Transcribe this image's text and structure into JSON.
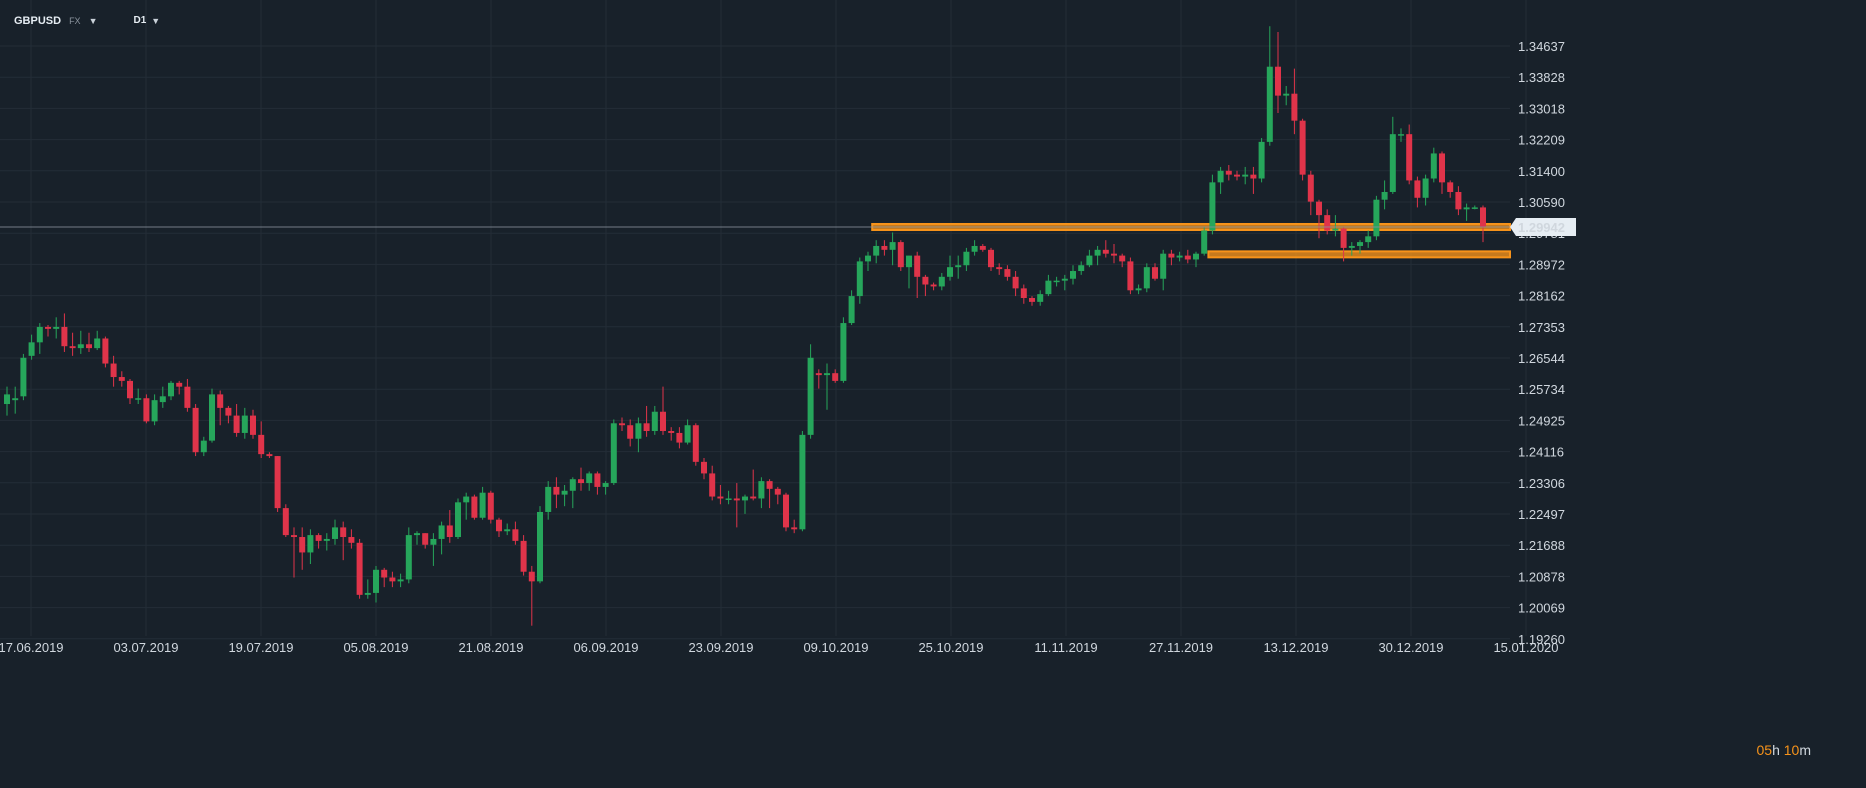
{
  "header": {
    "symbol": "GBPUSD",
    "market": "FX",
    "timeframe": "D1"
  },
  "colors": {
    "background": "#18212a",
    "grid": "#232d37",
    "up": "#26a65b",
    "down": "#e0344a",
    "zone": "#f7931a",
    "price_line": "#8b949e"
  },
  "timer": {
    "hours": "05",
    "h": "h",
    "minutes": "10",
    "m": "m"
  },
  "current_price": "1.29942",
  "chart_data": {
    "type": "candlestick",
    "title": "",
    "xlabel": "",
    "ylabel": "",
    "ylim": [
      1.1926,
      1.35446
    ],
    "y_ticks": [
      "1.34637",
      "1.33828",
      "1.33018",
      "1.32209",
      "1.31400",
      "1.30590",
      "1.29781",
      "1.28972",
      "1.28162",
      "1.27353",
      "1.26544",
      "1.25734",
      "1.24925",
      "1.24116",
      "1.23306",
      "1.22497",
      "1.21688",
      "1.20878",
      "1.20069",
      "1.19260"
    ],
    "x_ticks": [
      "17.06.2019",
      "03.07.2019",
      "19.07.2019",
      "05.08.2019",
      "21.08.2019",
      "06.09.2019",
      "23.09.2019",
      "09.10.2019",
      "25.10.2019",
      "11.11.2019",
      "27.11.2019",
      "13.12.2019",
      "30.12.2019",
      "15.01.2020"
    ],
    "grid": true,
    "candles_start_date": "17.06.2019",
    "candles": [
      {
        "o": 1.2535,
        "h": 1.258,
        "l": 1.2505,
        "c": 1.256
      },
      {
        "o": 1.2545,
        "h": 1.258,
        "l": 1.251,
        "c": 1.255
      },
      {
        "o": 1.2555,
        "h": 1.2665,
        "l": 1.2545,
        "c": 1.2655
      },
      {
        "o": 1.266,
        "h": 1.2715,
        "l": 1.265,
        "c": 1.2695
      },
      {
        "o": 1.2695,
        "h": 1.2745,
        "l": 1.2665,
        "c": 1.2735
      },
      {
        "o": 1.2735,
        "h": 1.274,
        "l": 1.271,
        "c": 1.273
      },
      {
        "o": 1.273,
        "h": 1.276,
        "l": 1.2705,
        "c": 1.2735
      },
      {
        "o": 1.2735,
        "h": 1.277,
        "l": 1.267,
        "c": 1.2685
      },
      {
        "o": 1.2685,
        "h": 1.272,
        "l": 1.266,
        "c": 1.268
      },
      {
        "o": 1.268,
        "h": 1.2725,
        "l": 1.2665,
        "c": 1.269
      },
      {
        "o": 1.269,
        "h": 1.272,
        "l": 1.267,
        "c": 1.268
      },
      {
        "o": 1.268,
        "h": 1.2725,
        "l": 1.2675,
        "c": 1.2705
      },
      {
        "o": 1.2705,
        "h": 1.271,
        "l": 1.263,
        "c": 1.264
      },
      {
        "o": 1.264,
        "h": 1.266,
        "l": 1.258,
        "c": 1.2605
      },
      {
        "o": 1.2605,
        "h": 1.262,
        "l": 1.258,
        "c": 1.2595
      },
      {
        "o": 1.2595,
        "h": 1.26,
        "l": 1.2535,
        "c": 1.255
      },
      {
        "o": 1.255,
        "h": 1.2575,
        "l": 1.2535,
        "c": 1.255
      },
      {
        "o": 1.255,
        "h": 1.256,
        "l": 1.2485,
        "c": 1.249
      },
      {
        "o": 1.249,
        "h": 1.256,
        "l": 1.248,
        "c": 1.2545
      },
      {
        "o": 1.254,
        "h": 1.258,
        "l": 1.2525,
        "c": 1.2555
      },
      {
        "o": 1.2555,
        "h": 1.2595,
        "l": 1.2545,
        "c": 1.259
      },
      {
        "o": 1.259,
        "h": 1.2595,
        "l": 1.256,
        "c": 1.258
      },
      {
        "o": 1.258,
        "h": 1.26,
        "l": 1.2515,
        "c": 1.2525
      },
      {
        "o": 1.2525,
        "h": 1.2535,
        "l": 1.24,
        "c": 1.241
      },
      {
        "o": 1.241,
        "h": 1.245,
        "l": 1.24,
        "c": 1.244
      },
      {
        "o": 1.244,
        "h": 1.2575,
        "l": 1.2435,
        "c": 1.256
      },
      {
        "o": 1.256,
        "h": 1.257,
        "l": 1.248,
        "c": 1.2525
      },
      {
        "o": 1.2525,
        "h": 1.253,
        "l": 1.2485,
        "c": 1.2505
      },
      {
        "o": 1.2505,
        "h": 1.2535,
        "l": 1.245,
        "c": 1.246
      },
      {
        "o": 1.246,
        "h": 1.2525,
        "l": 1.2445,
        "c": 1.2505
      },
      {
        "o": 1.2505,
        "h": 1.252,
        "l": 1.2445,
        "c": 1.2455
      },
      {
        "o": 1.2455,
        "h": 1.249,
        "l": 1.2395,
        "c": 1.2405
      },
      {
        "o": 1.2405,
        "h": 1.241,
        "l": 1.2395,
        "c": 1.24
      },
      {
        "o": 1.24,
        "h": 1.24,
        "l": 1.2255,
        "c": 1.2265
      },
      {
        "o": 1.2265,
        "h": 1.2275,
        "l": 1.219,
        "c": 1.2195
      },
      {
        "o": 1.2195,
        "h": 1.2215,
        "l": 1.2085,
        "c": 1.219
      },
      {
        "o": 1.219,
        "h": 1.2215,
        "l": 1.2105,
        "c": 1.215
      },
      {
        "o": 1.215,
        "h": 1.221,
        "l": 1.212,
        "c": 1.2195
      },
      {
        "o": 1.2195,
        "h": 1.22,
        "l": 1.216,
        "c": 1.218
      },
      {
        "o": 1.218,
        "h": 1.22,
        "l": 1.2155,
        "c": 1.2185
      },
      {
        "o": 1.2185,
        "h": 1.2235,
        "l": 1.217,
        "c": 1.2215
      },
      {
        "o": 1.2215,
        "h": 1.223,
        "l": 1.213,
        "c": 1.219
      },
      {
        "o": 1.219,
        "h": 1.221,
        "l": 1.216,
        "c": 1.2175
      },
      {
        "o": 1.2175,
        "h": 1.2185,
        "l": 1.203,
        "c": 1.204
      },
      {
        "o": 1.204,
        "h": 1.208,
        "l": 1.203,
        "c": 1.2045
      },
      {
        "o": 1.2045,
        "h": 1.2115,
        "l": 1.202,
        "c": 1.2105
      },
      {
        "o": 1.2105,
        "h": 1.211,
        "l": 1.206,
        "c": 1.2085
      },
      {
        "o": 1.2085,
        "h": 1.21,
        "l": 1.206,
        "c": 1.2075
      },
      {
        "o": 1.2075,
        "h": 1.2095,
        "l": 1.206,
        "c": 1.208
      },
      {
        "o": 1.208,
        "h": 1.2215,
        "l": 1.207,
        "c": 1.2195
      },
      {
        "o": 1.2195,
        "h": 1.2205,
        "l": 1.217,
        "c": 1.22
      },
      {
        "o": 1.22,
        "h": 1.22,
        "l": 1.216,
        "c": 1.217
      },
      {
        "o": 1.217,
        "h": 1.22,
        "l": 1.2115,
        "c": 1.2185
      },
      {
        "o": 1.2185,
        "h": 1.223,
        "l": 1.2145,
        "c": 1.222
      },
      {
        "o": 1.222,
        "h": 1.226,
        "l": 1.2175,
        "c": 1.219
      },
      {
        "o": 1.219,
        "h": 1.229,
        "l": 1.2185,
        "c": 1.228
      },
      {
        "o": 1.228,
        "h": 1.2305,
        "l": 1.2235,
        "c": 1.2295
      },
      {
        "o": 1.2295,
        "h": 1.23,
        "l": 1.2235,
        "c": 1.224
      },
      {
        "o": 1.224,
        "h": 1.232,
        "l": 1.2235,
        "c": 1.2305
      },
      {
        "o": 1.2305,
        "h": 1.231,
        "l": 1.2225,
        "c": 1.2235
      },
      {
        "o": 1.2235,
        "h": 1.224,
        "l": 1.219,
        "c": 1.2205
      },
      {
        "o": 1.2205,
        "h": 1.2225,
        "l": 1.2195,
        "c": 1.221
      },
      {
        "o": 1.221,
        "h": 1.223,
        "l": 1.217,
        "c": 1.218
      },
      {
        "o": 1.218,
        "h": 1.2195,
        "l": 1.209,
        "c": 1.21
      },
      {
        "o": 1.21,
        "h": 1.2115,
        "l": 1.196,
        "c": 1.2075
      },
      {
        "o": 1.2075,
        "h": 1.227,
        "l": 1.207,
        "c": 1.2255
      },
      {
        "o": 1.2255,
        "h": 1.2335,
        "l": 1.2235,
        "c": 1.232
      },
      {
        "o": 1.232,
        "h": 1.2345,
        "l": 1.2265,
        "c": 1.23
      },
      {
        "o": 1.23,
        "h": 1.2325,
        "l": 1.227,
        "c": 1.231
      },
      {
        "o": 1.231,
        "h": 1.2345,
        "l": 1.2265,
        "c": 1.234
      },
      {
        "o": 1.234,
        "h": 1.237,
        "l": 1.231,
        "c": 1.233
      },
      {
        "o": 1.233,
        "h": 1.236,
        "l": 1.231,
        "c": 1.2355
      },
      {
        "o": 1.2355,
        "h": 1.236,
        "l": 1.23,
        "c": 1.232
      },
      {
        "o": 1.232,
        "h": 1.2335,
        "l": 1.23,
        "c": 1.233
      },
      {
        "o": 1.233,
        "h": 1.2495,
        "l": 1.2325,
        "c": 1.2485
      },
      {
        "o": 1.2485,
        "h": 1.25,
        "l": 1.2465,
        "c": 1.248
      },
      {
        "o": 1.248,
        "h": 1.2495,
        "l": 1.2425,
        "c": 1.2445
      },
      {
        "o": 1.2445,
        "h": 1.25,
        "l": 1.241,
        "c": 1.2485
      },
      {
        "o": 1.2485,
        "h": 1.253,
        "l": 1.245,
        "c": 1.2465
      },
      {
        "o": 1.2465,
        "h": 1.253,
        "l": 1.2455,
        "c": 1.2515
      },
      {
        "o": 1.2515,
        "h": 1.258,
        "l": 1.2455,
        "c": 1.2465
      },
      {
        "o": 1.2465,
        "h": 1.2475,
        "l": 1.244,
        "c": 1.246
      },
      {
        "o": 1.246,
        "h": 1.2475,
        "l": 1.242,
        "c": 1.2435
      },
      {
        "o": 1.2435,
        "h": 1.2495,
        "l": 1.243,
        "c": 1.248
      },
      {
        "o": 1.248,
        "h": 1.2485,
        "l": 1.2375,
        "c": 1.2385
      },
      {
        "o": 1.2385,
        "h": 1.2395,
        "l": 1.234,
        "c": 1.2355
      },
      {
        "o": 1.2355,
        "h": 1.2375,
        "l": 1.2285,
        "c": 1.2295
      },
      {
        "o": 1.2295,
        "h": 1.2325,
        "l": 1.2275,
        "c": 1.229
      },
      {
        "o": 1.229,
        "h": 1.231,
        "l": 1.2275,
        "c": 1.229
      },
      {
        "o": 1.229,
        "h": 1.233,
        "l": 1.2215,
        "c": 1.2285
      },
      {
        "o": 1.2285,
        "h": 1.23,
        "l": 1.225,
        "c": 1.2295
      },
      {
        "o": 1.2295,
        "h": 1.2365,
        "l": 1.2285,
        "c": 1.229
      },
      {
        "o": 1.229,
        "h": 1.2345,
        "l": 1.2265,
        "c": 1.2335
      },
      {
        "o": 1.2335,
        "h": 1.234,
        "l": 1.2265,
        "c": 1.2315
      },
      {
        "o": 1.2315,
        "h": 1.232,
        "l": 1.2275,
        "c": 1.23
      },
      {
        "o": 1.23,
        "h": 1.2305,
        "l": 1.2205,
        "c": 1.2215
      },
      {
        "o": 1.2215,
        "h": 1.2235,
        "l": 1.22,
        "c": 1.221
      },
      {
        "o": 1.221,
        "h": 1.2465,
        "l": 1.2205,
        "c": 1.2455
      },
      {
        "o": 1.2455,
        "h": 1.269,
        "l": 1.2445,
        "c": 1.2655
      },
      {
        "o": 1.2615,
        "h": 1.2625,
        "l": 1.2575,
        "c": 1.261
      },
      {
        "o": 1.261,
        "h": 1.264,
        "l": 1.252,
        "c": 1.2615
      },
      {
        "o": 1.2615,
        "h": 1.2625,
        "l": 1.259,
        "c": 1.2595
      },
      {
        "o": 1.2595,
        "h": 1.276,
        "l": 1.259,
        "c": 1.2745
      },
      {
        "o": 1.2745,
        "h": 1.283,
        "l": 1.274,
        "c": 1.2815
      },
      {
        "o": 1.2815,
        "h": 1.2915,
        "l": 1.2795,
        "c": 1.2905
      },
      {
        "o": 1.2905,
        "h": 1.293,
        "l": 1.288,
        "c": 1.292
      },
      {
        "o": 1.292,
        "h": 1.296,
        "l": 1.29,
        "c": 1.2945
      },
      {
        "o": 1.2945,
        "h": 1.296,
        "l": 1.292,
        "c": 1.2935
      },
      {
        "o": 1.2935,
        "h": 1.298,
        "l": 1.2895,
        "c": 1.2955
      },
      {
        "o": 1.2955,
        "h": 1.296,
        "l": 1.288,
        "c": 1.289
      },
      {
        "o": 1.289,
        "h": 1.292,
        "l": 1.2835,
        "c": 1.292
      },
      {
        "o": 1.292,
        "h": 1.293,
        "l": 1.281,
        "c": 1.2865
      },
      {
        "o": 1.2865,
        "h": 1.287,
        "l": 1.2815,
        "c": 1.2845
      },
      {
        "o": 1.2845,
        "h": 1.285,
        "l": 1.283,
        "c": 1.284
      },
      {
        "o": 1.284,
        "h": 1.2875,
        "l": 1.283,
        "c": 1.2865
      },
      {
        "o": 1.2865,
        "h": 1.292,
        "l": 1.2855,
        "c": 1.289
      },
      {
        "o": 1.289,
        "h": 1.292,
        "l": 1.286,
        "c": 1.2895
      },
      {
        "o": 1.2895,
        "h": 1.294,
        "l": 1.288,
        "c": 1.293
      },
      {
        "o": 1.293,
        "h": 1.296,
        "l": 1.292,
        "c": 1.2945
      },
      {
        "o": 1.2945,
        "h": 1.295,
        "l": 1.293,
        "c": 1.2935
      },
      {
        "o": 1.2935,
        "h": 1.294,
        "l": 1.288,
        "c": 1.289
      },
      {
        "o": 1.289,
        "h": 1.29,
        "l": 1.287,
        "c": 1.2885
      },
      {
        "o": 1.2885,
        "h": 1.2895,
        "l": 1.2855,
        "c": 1.2865
      },
      {
        "o": 1.2865,
        "h": 1.288,
        "l": 1.2815,
        "c": 1.2835
      },
      {
        "o": 1.2835,
        "h": 1.2845,
        "l": 1.2795,
        "c": 1.281
      },
      {
        "o": 1.281,
        "h": 1.2815,
        "l": 1.279,
        "c": 1.28
      },
      {
        "o": 1.28,
        "h": 1.283,
        "l": 1.279,
        "c": 1.282
      },
      {
        "o": 1.282,
        "h": 1.287,
        "l": 1.2815,
        "c": 1.2855
      },
      {
        "o": 1.2855,
        "h": 1.2865,
        "l": 1.284,
        "c": 1.2855
      },
      {
        "o": 1.2855,
        "h": 1.287,
        "l": 1.283,
        "c": 1.286
      },
      {
        "o": 1.286,
        "h": 1.2895,
        "l": 1.2845,
        "c": 1.288
      },
      {
        "o": 1.288,
        "h": 1.2905,
        "l": 1.287,
        "c": 1.2895
      },
      {
        "o": 1.2895,
        "h": 1.2935,
        "l": 1.289,
        "c": 1.292
      },
      {
        "o": 1.292,
        "h": 1.2945,
        "l": 1.2895,
        "c": 1.2935
      },
      {
        "o": 1.2935,
        "h": 1.296,
        "l": 1.2915,
        "c": 1.2925
      },
      {
        "o": 1.2925,
        "h": 1.295,
        "l": 1.29,
        "c": 1.292
      },
      {
        "o": 1.292,
        "h": 1.2925,
        "l": 1.289,
        "c": 1.2905
      },
      {
        "o": 1.2905,
        "h": 1.2915,
        "l": 1.282,
        "c": 1.283
      },
      {
        "o": 1.283,
        "h": 1.2845,
        "l": 1.282,
        "c": 1.2835
      },
      {
        "o": 1.2835,
        "h": 1.29,
        "l": 1.2825,
        "c": 1.289
      },
      {
        "o": 1.289,
        "h": 1.29,
        "l": 1.2855,
        "c": 1.286
      },
      {
        "o": 1.286,
        "h": 1.2935,
        "l": 1.283,
        "c": 1.2925
      },
      {
        "o": 1.2925,
        "h": 1.2935,
        "l": 1.2895,
        "c": 1.2915
      },
      {
        "o": 1.2915,
        "h": 1.293,
        "l": 1.2905,
        "c": 1.292
      },
      {
        "o": 1.292,
        "h": 1.2935,
        "l": 1.29,
        "c": 1.291
      },
      {
        "o": 1.291,
        "h": 1.293,
        "l": 1.289,
        "c": 1.2925
      },
      {
        "o": 1.2925,
        "h": 1.2995,
        "l": 1.292,
        "c": 1.2985
      },
      {
        "o": 1.2985,
        "h": 1.313,
        "l": 1.2975,
        "c": 1.311
      },
      {
        "o": 1.311,
        "h": 1.315,
        "l": 1.308,
        "c": 1.314
      },
      {
        "o": 1.314,
        "h": 1.3155,
        "l": 1.3115,
        "c": 1.313
      },
      {
        "o": 1.313,
        "h": 1.314,
        "l": 1.3115,
        "c": 1.3125
      },
      {
        "o": 1.3125,
        "h": 1.315,
        "l": 1.3105,
        "c": 1.313
      },
      {
        "o": 1.313,
        "h": 1.315,
        "l": 1.308,
        "c": 1.312
      },
      {
        "o": 1.312,
        "h": 1.3225,
        "l": 1.311,
        "c": 1.3215
      },
      {
        "o": 1.3215,
        "h": 1.3515,
        "l": 1.3205,
        "c": 1.341
      },
      {
        "o": 1.341,
        "h": 1.35,
        "l": 1.329,
        "c": 1.3335
      },
      {
        "o": 1.3335,
        "h": 1.336,
        "l": 1.331,
        "c": 1.334
      },
      {
        "o": 1.334,
        "h": 1.3405,
        "l": 1.3235,
        "c": 1.327
      },
      {
        "o": 1.327,
        "h": 1.3275,
        "l": 1.3115,
        "c": 1.313
      },
      {
        "o": 1.313,
        "h": 1.314,
        "l": 1.3025,
        "c": 1.306
      },
      {
        "o": 1.306,
        "h": 1.3065,
        "l": 1.2965,
        "c": 1.3025
      },
      {
        "o": 1.3025,
        "h": 1.304,
        "l": 1.2975,
        "c": 1.2985
      },
      {
        "o": 1.2985,
        "h": 1.3025,
        "l": 1.297,
        "c": 1.299
      },
      {
        "o": 1.299,
        "h": 1.2995,
        "l": 1.2905,
        "c": 1.294
      },
      {
        "o": 1.294,
        "h": 1.2955,
        "l": 1.292,
        "c": 1.2945
      },
      {
        "o": 1.2945,
        "h": 1.296,
        "l": 1.2925,
        "c": 1.2955
      },
      {
        "o": 1.2955,
        "h": 1.2985,
        "l": 1.294,
        "c": 1.297
      },
      {
        "o": 1.297,
        "h": 1.3075,
        "l": 1.296,
        "c": 1.3065
      },
      {
        "o": 1.3065,
        "h": 1.3115,
        "l": 1.304,
        "c": 1.3085
      },
      {
        "o": 1.3085,
        "h": 1.328,
        "l": 1.308,
        "c": 1.3235
      },
      {
        "o": 1.3235,
        "h": 1.325,
        "l": 1.3215,
        "c": 1.3235
      },
      {
        "o": 1.3235,
        "h": 1.326,
        "l": 1.3105,
        "c": 1.3115
      },
      {
        "o": 1.3115,
        "h": 1.3125,
        "l": 1.3045,
        "c": 1.307
      },
      {
        "o": 1.307,
        "h": 1.313,
        "l": 1.305,
        "c": 1.312
      },
      {
        "o": 1.312,
        "h": 1.32,
        "l": 1.311,
        "c": 1.3185
      },
      {
        "o": 1.3185,
        "h": 1.319,
        "l": 1.308,
        "c": 1.311
      },
      {
        "o": 1.311,
        "h": 1.3115,
        "l": 1.307,
        "c": 1.3085
      },
      {
        "o": 1.3085,
        "h": 1.31,
        "l": 1.3025,
        "c": 1.304
      },
      {
        "o": 1.304,
        "h": 1.3055,
        "l": 1.301,
        "c": 1.3045
      },
      {
        "o": 1.3045,
        "h": 1.305,
        "l": 1.304,
        "c": 1.3045
      },
      {
        "o": 1.3045,
        "h": 1.305,
        "l": 1.2955,
        "c": 1.2995
      }
    ],
    "zones": [
      {
        "low": 1.2988,
        "high": 1.3002,
        "from_index": 106
      },
      {
        "low": 1.2919,
        "high": 1.2931,
        "from_index": 147
      }
    ]
  }
}
